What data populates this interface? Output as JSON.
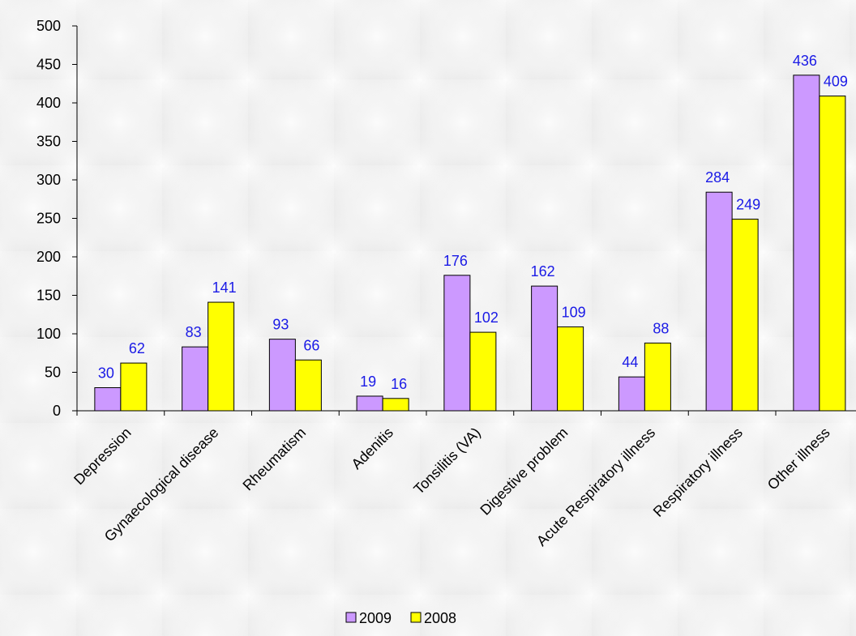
{
  "chart_data": {
    "type": "bar",
    "title": "",
    "xlabel": "",
    "ylabel": "",
    "ylim": [
      0,
      500
    ],
    "yticks": [
      0,
      50,
      100,
      150,
      200,
      250,
      300,
      350,
      400,
      450,
      500
    ],
    "grid": false,
    "legend_position": "bottom",
    "categories": [
      "Depression",
      "Gynaecological disease",
      "Rheumatism",
      "Adenitis",
      "Tonsilitis (VA)",
      "Digestive problem",
      "Acute Respiratory illness",
      "Respiratory illness",
      "Other illness"
    ],
    "series": [
      {
        "name": "2009",
        "color": "#cc99ff",
        "values": [
          30,
          83,
          93,
          19,
          176,
          162,
          44,
          284,
          436
        ]
      },
      {
        "name": "2008",
        "color": "#ffff00",
        "values": [
          62,
          141,
          66,
          16,
          102,
          109,
          88,
          249,
          409
        ]
      }
    ],
    "data_label_color": "#1a1ae6"
  }
}
